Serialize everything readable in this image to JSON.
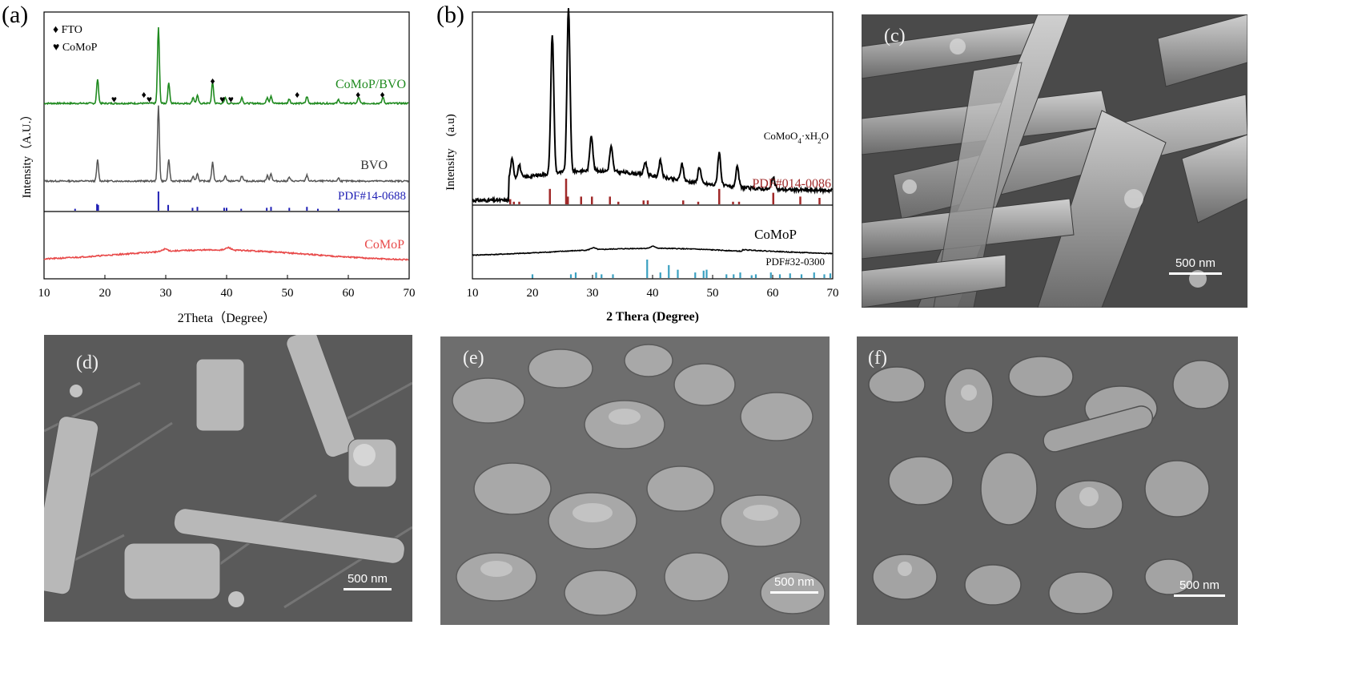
{
  "figure": {
    "panels": {
      "a": {
        "letter": "(a)",
        "legend": [
          {
            "symbol": "♦",
            "label": "FTO"
          },
          {
            "symbol": "♥",
            "label": "CoMoP"
          }
        ],
        "xlabel": "2Theta（Degree）",
        "ylabel": "Intensity（A.U.）",
        "ticks": [
          "10",
          "20",
          "30",
          "40",
          "50",
          "60",
          "70"
        ],
        "series_labels": {
          "comop_bvo": "CoMoP/BVO",
          "bvo": "BVO",
          "pdf": "PDF#14-0688",
          "comop": "CoMoP"
        },
        "colors": {
          "comop_bvo": "#1f8a1f",
          "bvo": "#555555",
          "pdf": "#1f1fb4",
          "comop": "#e84a4a"
        }
      },
      "b": {
        "letter": "(b)",
        "xlabel": "2 Thera (Degree)",
        "ylabel": "Intensity　(a.u)",
        "ticks": [
          "10",
          "20",
          "30",
          "40",
          "50",
          "60",
          "70"
        ],
        "series_labels": {
          "comoo4": "CoMoO",
          "comoo4_sub": "4",
          "comoo4_mid": "·xH",
          "comoo4_sub2": "2",
          "comoo4_end": "O",
          "pdf1": "PDF#014-0086",
          "comop": "CoMoP",
          "pdf2": "PDF#32-0300"
        },
        "colors": {
          "pdf1": "#a02a2a",
          "pdf2": "#3aa0c0",
          "curve": "#000000"
        }
      },
      "c": {
        "letter": "(c)",
        "scale": "500 nm"
      },
      "d": {
        "letter": "(d)",
        "scale": "500 nm"
      },
      "e": {
        "letter": "(e)",
        "scale": "500 nm"
      },
      "f": {
        "letter": "(f)",
        "scale": "500 nm"
      }
    }
  },
  "chart_data": [
    {
      "type": "line",
      "xlabel": "2Theta（Degree）",
      "ylabel": "Intensity（A.U.）",
      "xlim": [
        10,
        70
      ],
      "series": [
        {
          "name": "CoMoP/BVO",
          "peaks_2theta": [
            18.8,
            28.8,
            30.5,
            34.5,
            35.2,
            37.7,
            39.8,
            42.5,
            46.7,
            47.3,
            50.3,
            53.2,
            58.4,
            61.7,
            65.7
          ]
        },
        {
          "name": "BVO",
          "peaks_2theta": [
            18.8,
            28.8,
            30.5,
            34.5,
            35.2,
            37.7,
            39.8,
            42.5,
            46.7,
            47.3,
            50.3,
            53.2,
            58.4
          ]
        },
        {
          "name": "PDF#14-0688",
          "peaks_2theta": [
            15.1,
            18.7,
            18.9,
            28.8,
            30.4,
            34.4,
            35.2,
            39.6,
            40.0,
            42.4,
            46.6,
            47.3,
            50.3,
            53.2,
            55.0,
            58.4
          ]
        },
        {
          "name": "CoMoP",
          "peaks_2theta": [
            29.9,
            40.3
          ]
        }
      ],
      "markers": {
        "FTO": [
          26.4,
          37.7,
          51.6,
          61.6,
          65.6
        ],
        "CoMoP": [
          21.5,
          27.3,
          39.3,
          40.7
        ]
      }
    },
    {
      "type": "line",
      "xlabel": "2 Thera (Degree)",
      "ylabel": "Intensity　(a.u)",
      "xlim": [
        10,
        70
      ],
      "series": [
        {
          "name": "CoMoO4·xH2O",
          "peaks_2theta": [
            16.6,
            17.8,
            23.3,
            26.0,
            29.8,
            33.1,
            38.8,
            41.3,
            44.9,
            47.8,
            51.1,
            54.1,
            60.1
          ]
        },
        {
          "name": "PDF#014-0086",
          "peaks_2theta": [
            16.3,
            16.9,
            17.8,
            22.9,
            25.6,
            25.9,
            28.1,
            29.9,
            32.9,
            34.3,
            38.5,
            39.2,
            45.1,
            47.6,
            51.1,
            53.4,
            54.4,
            60.1,
            64.6,
            67.8
          ]
        },
        {
          "name": "CoMoP",
          "peaks_2theta": [
            30.1,
            40.1
          ]
        },
        {
          "name": "PDF#32-0300",
          "peaks_2theta": [
            20.0,
            26.4,
            27.2,
            30.6,
            31.5,
            33.4,
            39.1,
            41.3,
            42.7,
            44.2,
            47.1,
            48.5,
            49.0,
            52.3,
            53.5,
            54.6,
            56.5,
            57.2,
            59.7,
            61.2,
            62.9,
            64.8,
            66.9,
            68.6,
            69.6
          ]
        }
      ]
    }
  ]
}
